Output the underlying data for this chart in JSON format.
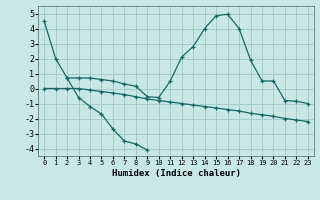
{
  "xlabel": "Humidex (Indice chaleur)",
  "bg_color": "#c8e8e8",
  "grid_color": "#a0c8c8",
  "line_color": "#1a6666",
  "xlim": [
    -0.5,
    23.5
  ],
  "ylim": [
    -4.5,
    5.5
  ],
  "yticks": [
    -4,
    -3,
    -2,
    -1,
    0,
    1,
    2,
    3,
    4,
    5
  ],
  "xticks": [
    0,
    1,
    2,
    3,
    4,
    5,
    6,
    7,
    8,
    9,
    10,
    11,
    12,
    13,
    14,
    15,
    16,
    17,
    18,
    19,
    20,
    21,
    22,
    23
  ],
  "line1_x": [
    0,
    1,
    2,
    3,
    4,
    5,
    6,
    7,
    8,
    9
  ],
  "line1_y": [
    4.5,
    2.0,
    0.7,
    -0.6,
    -1.2,
    -1.7,
    -2.7,
    -3.5,
    -3.7,
    -4.1
  ],
  "line2_x": [
    2,
    3,
    4,
    5,
    6,
    7,
    8,
    9,
    10,
    11,
    12,
    13,
    14,
    15,
    16,
    17,
    18,
    19,
    20,
    21,
    22,
    23
  ],
  "line2_y": [
    0.7,
    0.7,
    0.7,
    0.6,
    0.5,
    0.3,
    0.15,
    -0.55,
    -0.6,
    0.5,
    2.1,
    2.8,
    4.0,
    4.85,
    4.95,
    4.0,
    1.9,
    0.5,
    0.5,
    -0.8,
    -0.85,
    -1.0
  ],
  "line3_x": [
    0,
    1,
    2,
    3,
    4,
    5,
    6,
    7,
    8,
    9,
    10,
    11,
    12,
    13,
    14,
    15,
    16,
    17,
    18,
    19,
    20,
    21,
    22,
    23
  ],
  "line3_y": [
    0.0,
    0.0,
    0.0,
    0.0,
    -0.1,
    -0.2,
    -0.3,
    -0.4,
    -0.55,
    -0.7,
    -0.8,
    -0.9,
    -1.0,
    -1.1,
    -1.2,
    -1.3,
    -1.4,
    -1.5,
    -1.65,
    -1.75,
    -1.85,
    -2.0,
    -2.1,
    -2.2
  ]
}
